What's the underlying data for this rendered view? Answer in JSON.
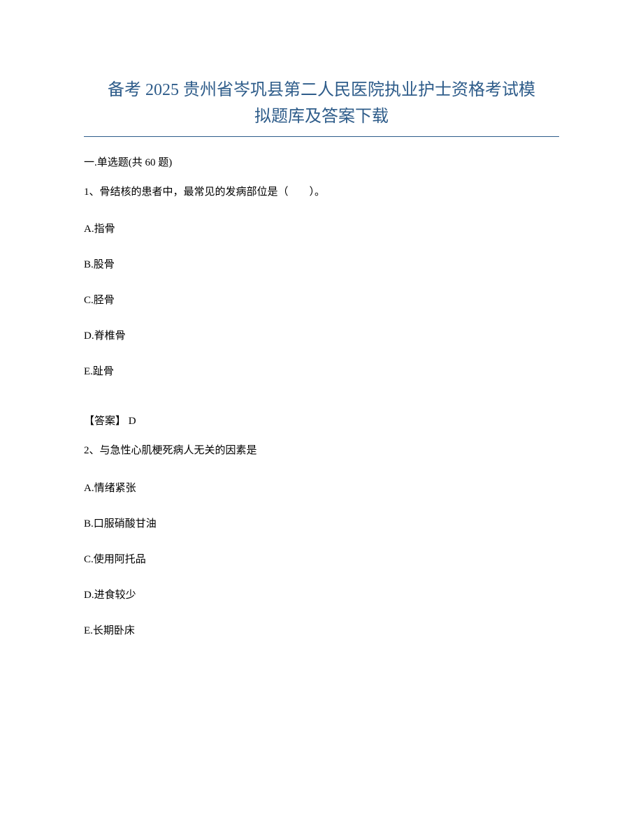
{
  "title": {
    "line1": "备考 2025 贵州省岑巩县第二人民医院执业护士资格考试模",
    "line2": "拟题库及答案下载"
  },
  "section_header": "一.单选题(共 60 题)",
  "questions": [
    {
      "number": "1、",
      "text": "骨结核的患者中，最常见的发病部位是（　　）。",
      "options": [
        "A.指骨",
        "B.股骨",
        "C.胫骨",
        "D.脊椎骨",
        "E.趾骨"
      ],
      "answer_label": "【答案】",
      "answer_value": " D"
    },
    {
      "number": "2、",
      "text": "与急性心肌梗死病人无关的因素是",
      "options": [
        "A.情绪紧张",
        "B.口服硝酸甘油",
        "C.使用阿托品",
        "D.进食较少",
        "E.长期卧床"
      ]
    }
  ],
  "colors": {
    "title_color": "#2e5c8a",
    "text_color": "#000000",
    "background": "#ffffff",
    "underline_color": "#2e5c8a"
  }
}
